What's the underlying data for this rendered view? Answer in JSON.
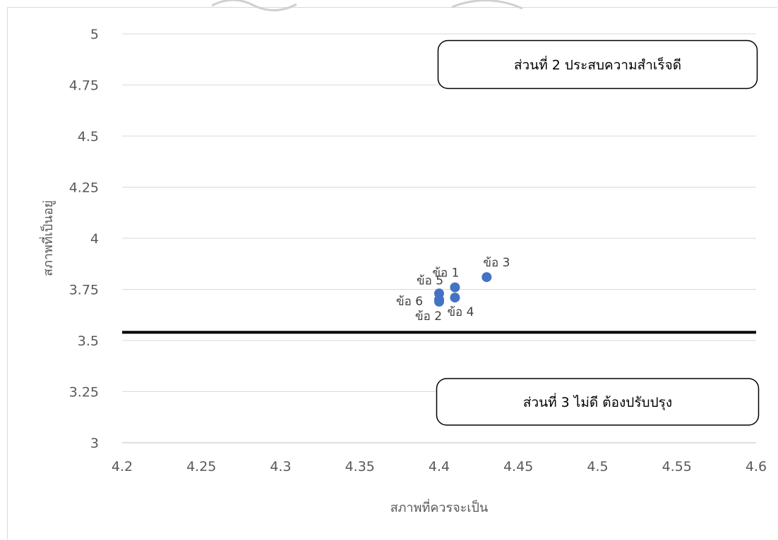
{
  "chart_data": {
    "type": "scatter",
    "xlabel": "สภาพที่ควรจะเป็น",
    "ylabel": "สภาพที่เป็นอยู่",
    "xlim": [
      4.2,
      4.6
    ],
    "ylim": [
      3,
      5
    ],
    "x_ticks": [
      "4.2",
      "4.25",
      "4.3",
      "4.35",
      "4.4",
      "4.45",
      "4.5",
      "4.55",
      "4.6"
    ],
    "y_ticks": [
      "3",
      "3.25",
      "3.5",
      "3.75",
      "4",
      "4.25",
      "4.5",
      "4.75",
      "5"
    ],
    "grid": "horizontal",
    "point_color": "#4472c4",
    "points": [
      {
        "label": "ข้อ 1",
        "x": 4.41,
        "y": 3.76
      },
      {
        "label": "ข้อ 2",
        "x": 4.4,
        "y": 3.69
      },
      {
        "label": "ข้อ 3",
        "x": 4.43,
        "y": 3.81
      },
      {
        "label": "ข้อ 4",
        "x": 4.41,
        "y": 3.71
      },
      {
        "label": "ข้อ 5",
        "x": 4.4,
        "y": 3.73
      },
      {
        "label": "ข้อ 6",
        "x": 4.4,
        "y": 3.7
      }
    ],
    "threshold_y": 3.54,
    "annotations": [
      {
        "text": "ส่วนที่ 2 ประสบความสำเร็จดี",
        "x": 4.5,
        "y": 4.85
      },
      {
        "text": "ส่วนที่ 3 ไม่ดี ต้องปรับปรุง",
        "x": 4.5,
        "y": 3.2
      }
    ]
  }
}
